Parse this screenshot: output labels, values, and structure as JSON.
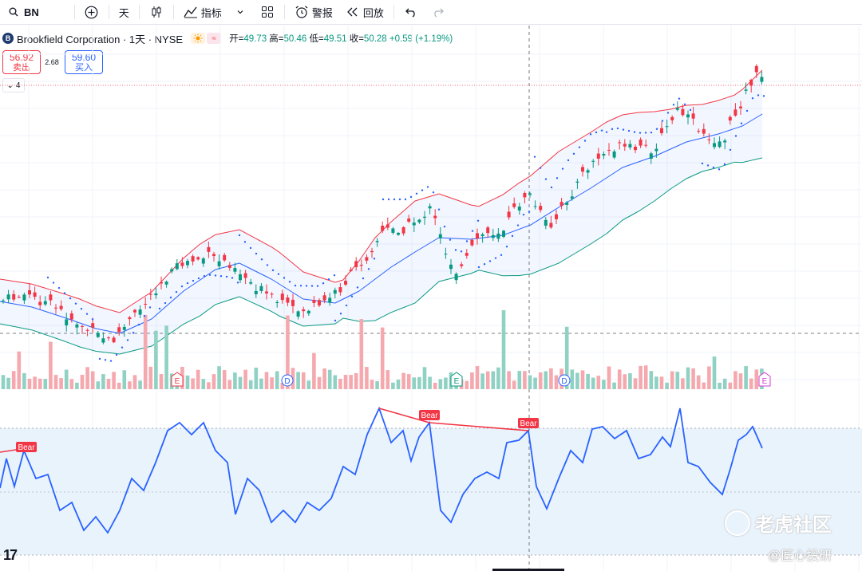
{
  "toolbar": {
    "symbol": "BN",
    "interval": "天",
    "indicators_label": "指标",
    "alert_label": "警报",
    "replay_label": "回放"
  },
  "legend": {
    "company": "Brookfield Corporation · 1天 · NYSE",
    "logo_letter": "B",
    "open_label": "开=",
    "open": "49.73",
    "high_label": "高=",
    "high": "50.46",
    "low_label": "低=",
    "low": "49.51",
    "close_label": "收=",
    "close": "50.28",
    "change": "+0.59 (+1.19%)"
  },
  "trade": {
    "sell_price": "56.92",
    "sell_label": "卖出",
    "spread": "2.68",
    "buy_price": "59.60",
    "buy_label": "买入"
  },
  "collapse_count": "4",
  "events": [
    {
      "letter": "E",
      "type": "earnings"
    },
    {
      "letter": "D",
      "type": "dividend"
    },
    {
      "letter": "E",
      "type": "earnings"
    },
    {
      "letter": "D",
      "type": "dividend"
    },
    {
      "letter": "E",
      "type": "earnings"
    }
  ],
  "rsi_labels": [
    "Bear",
    "Bear",
    "Bear"
  ],
  "watermark": {
    "brand": "老虎社区",
    "author": "@匠心投研"
  },
  "tv_logo": "17",
  "colors": {
    "up": "#089981",
    "down": "#f23645",
    "upper_band": "#f23645",
    "lower_band": "#089981",
    "middle_band": "#2962ff",
    "rsi_line": "#2962ff",
    "bear_label": "#f23645"
  }
}
